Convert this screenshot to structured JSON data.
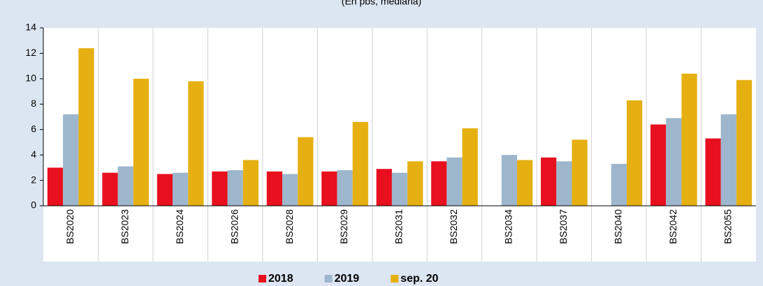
{
  "chart_data": {
    "type": "bar",
    "subtitle": "(En pbs, mediana)",
    "categories": [
      "BS2020",
      "BS2023",
      "BS2024",
      "BS2026",
      "BS2028",
      "BS2029",
      "BS2031",
      "BS2032",
      "BS2034",
      "BS2037",
      "BS2040",
      "BS2042",
      "BS2055"
    ],
    "series": [
      {
        "name": "2018",
        "color": "#e8101e",
        "values": [
          3.0,
          2.6,
          2.5,
          2.7,
          2.7,
          2.7,
          2.9,
          3.5,
          null,
          3.8,
          null,
          6.4,
          5.3
        ]
      },
      {
        "name": "2019",
        "color": "#9db6cc",
        "values": [
          7.2,
          3.1,
          2.6,
          2.8,
          2.5,
          2.8,
          2.6,
          3.8,
          4.0,
          3.5,
          3.3,
          6.9,
          7.2
        ]
      },
      {
        "name": "sep. 20",
        "color": "#e6b012",
        "values": [
          12.4,
          10.0,
          9.8,
          3.6,
          5.4,
          6.6,
          3.5,
          6.1,
          3.6,
          5.2,
          8.3,
          10.4,
          9.9
        ]
      }
    ],
    "ylim": [
      0,
      14
    ],
    "yticks": [
      0,
      2,
      4,
      6,
      8,
      10,
      12,
      14
    ],
    "grid": true
  }
}
